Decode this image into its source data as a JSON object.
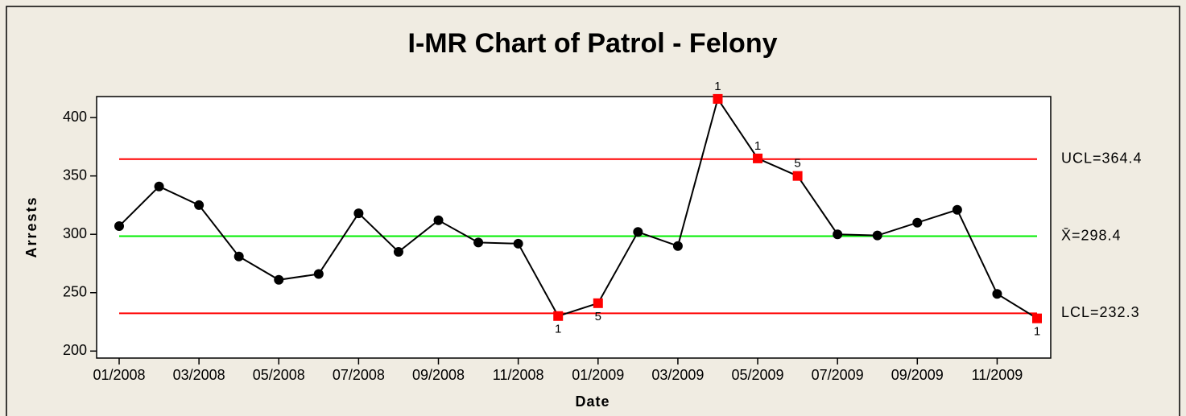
{
  "chart_data": {
    "type": "control",
    "title": "I-MR Chart of Patrol - Felony",
    "x_label": "Date",
    "y_label": "Arrests",
    "categories": [
      "01/2008",
      null,
      "03/2008",
      null,
      "05/2008",
      null,
      "07/2008",
      null,
      "09/2008",
      null,
      "11/2008",
      null,
      "01/2009",
      null,
      "03/2009",
      null,
      "05/2009",
      null,
      "07/2009",
      null,
      "09/2009",
      null,
      "11/2009",
      null
    ],
    "values": [
      307,
      341,
      325,
      281,
      261,
      266,
      318,
      285,
      312,
      293,
      292,
      230,
      241,
      302,
      290,
      416,
      365,
      350,
      300,
      299,
      310,
      321,
      249,
      228
    ],
    "test_labels": [
      null,
      null,
      null,
      null,
      null,
      null,
      null,
      null,
      null,
      null,
      null,
      "1",
      "5",
      null,
      null,
      "1",
      "1",
      "5",
      null,
      null,
      null,
      null,
      null,
      "1"
    ],
    "color": "#000000",
    "flag_color": "#ff0000",
    "limits": [
      {
        "name": "UCL",
        "label": "UCL=364.4",
        "value": 364.4,
        "color": "#ff0000"
      },
      {
        "name": "mean",
        "label": "X̄=298.4",
        "value": 298.4,
        "color": "#00ee00"
      },
      {
        "name": "LCL",
        "label": "LCL=232.3",
        "value": 232.3,
        "color": "#ff0000"
      }
    ],
    "ylim": [
      194,
      418
    ],
    "yticks": [
      200,
      250,
      300,
      350,
      400
    ]
  }
}
